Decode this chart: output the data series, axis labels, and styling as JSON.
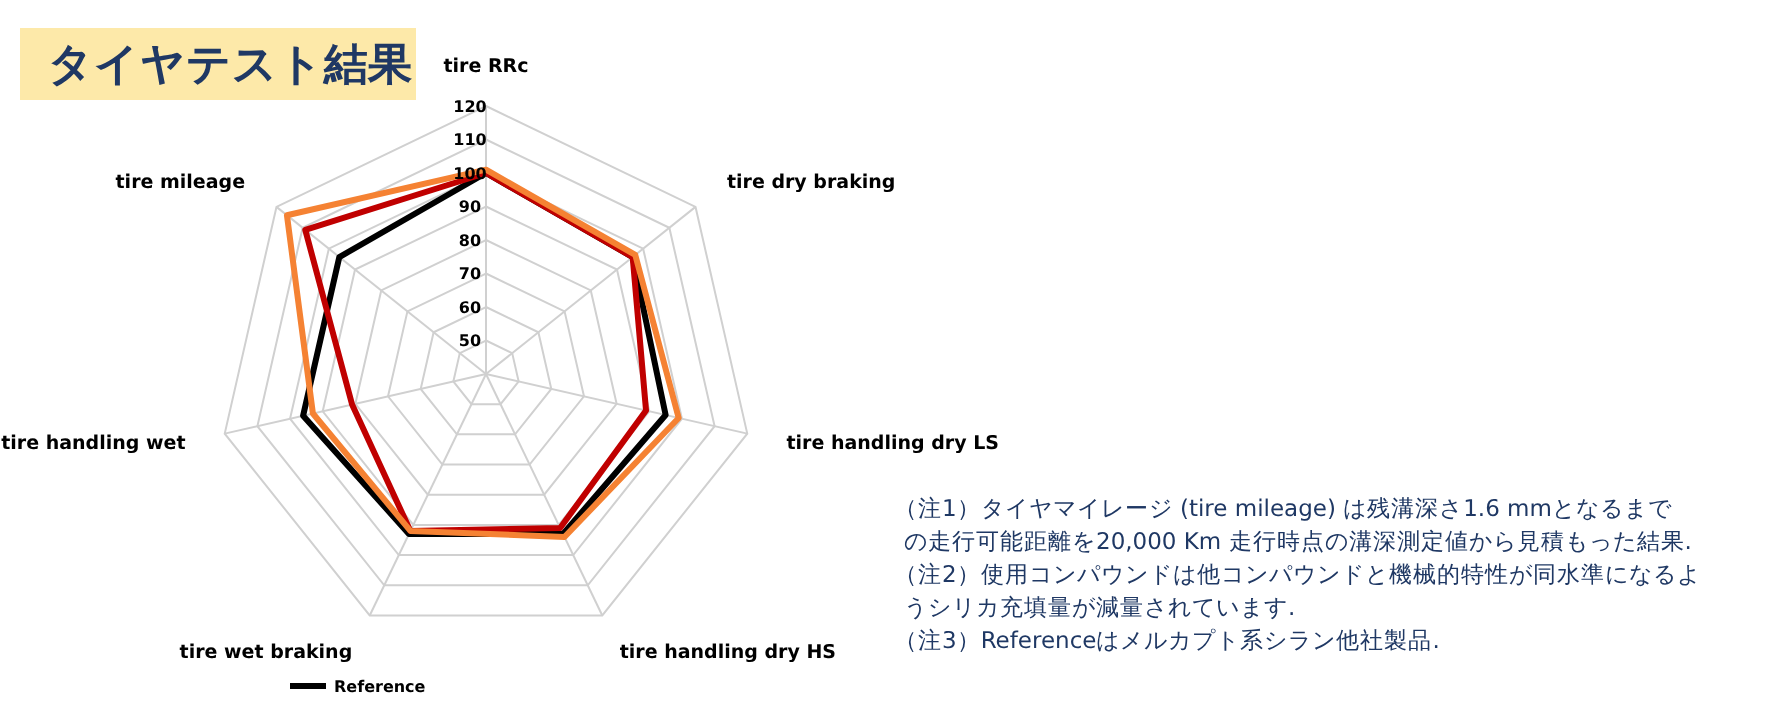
{
  "chart_data": {
    "type": "radar",
    "title": "タイヤテスト結果",
    "categories": [
      "tire RRc",
      "tire dry braking",
      "tire handling dry LS",
      "tire handling dry HS",
      "tire wet braking",
      "tire handling wet",
      "tire mileage"
    ],
    "series": [
      {
        "name": "Reference",
        "color": "#000000",
        "values": [
          100,
          96,
          95,
          93,
          93,
          96,
          96
        ]
      },
      {
        "color": "#c00000",
        "values": [
          100,
          96,
          89,
          91,
          92,
          81,
          109
        ]
      },
      {
        "color": "#f58233",
        "values": [
          101,
          97,
          99,
          94,
          92,
          93,
          116
        ]
      }
    ],
    "ylim": [
      40,
      120
    ],
    "yticks": [
      50,
      60,
      70,
      80,
      90,
      100,
      110,
      120
    ],
    "grid": true,
    "legend": "bottom",
    "annotations": [
      "（注1）タイヤマイレージ (tire mileage) は残溝深さ1.6 mmとなるまでの走行可能距離を20,000 Km 走行時点の溝深測定値から見積もった結果.",
      "（注2）使用コンパウンドは他コンパウンドと機械的特性が同水準になるようシリカ充填量が減量されています.",
      "（注3）Referenceはメルカプト系シラン他社製品."
    ]
  }
}
